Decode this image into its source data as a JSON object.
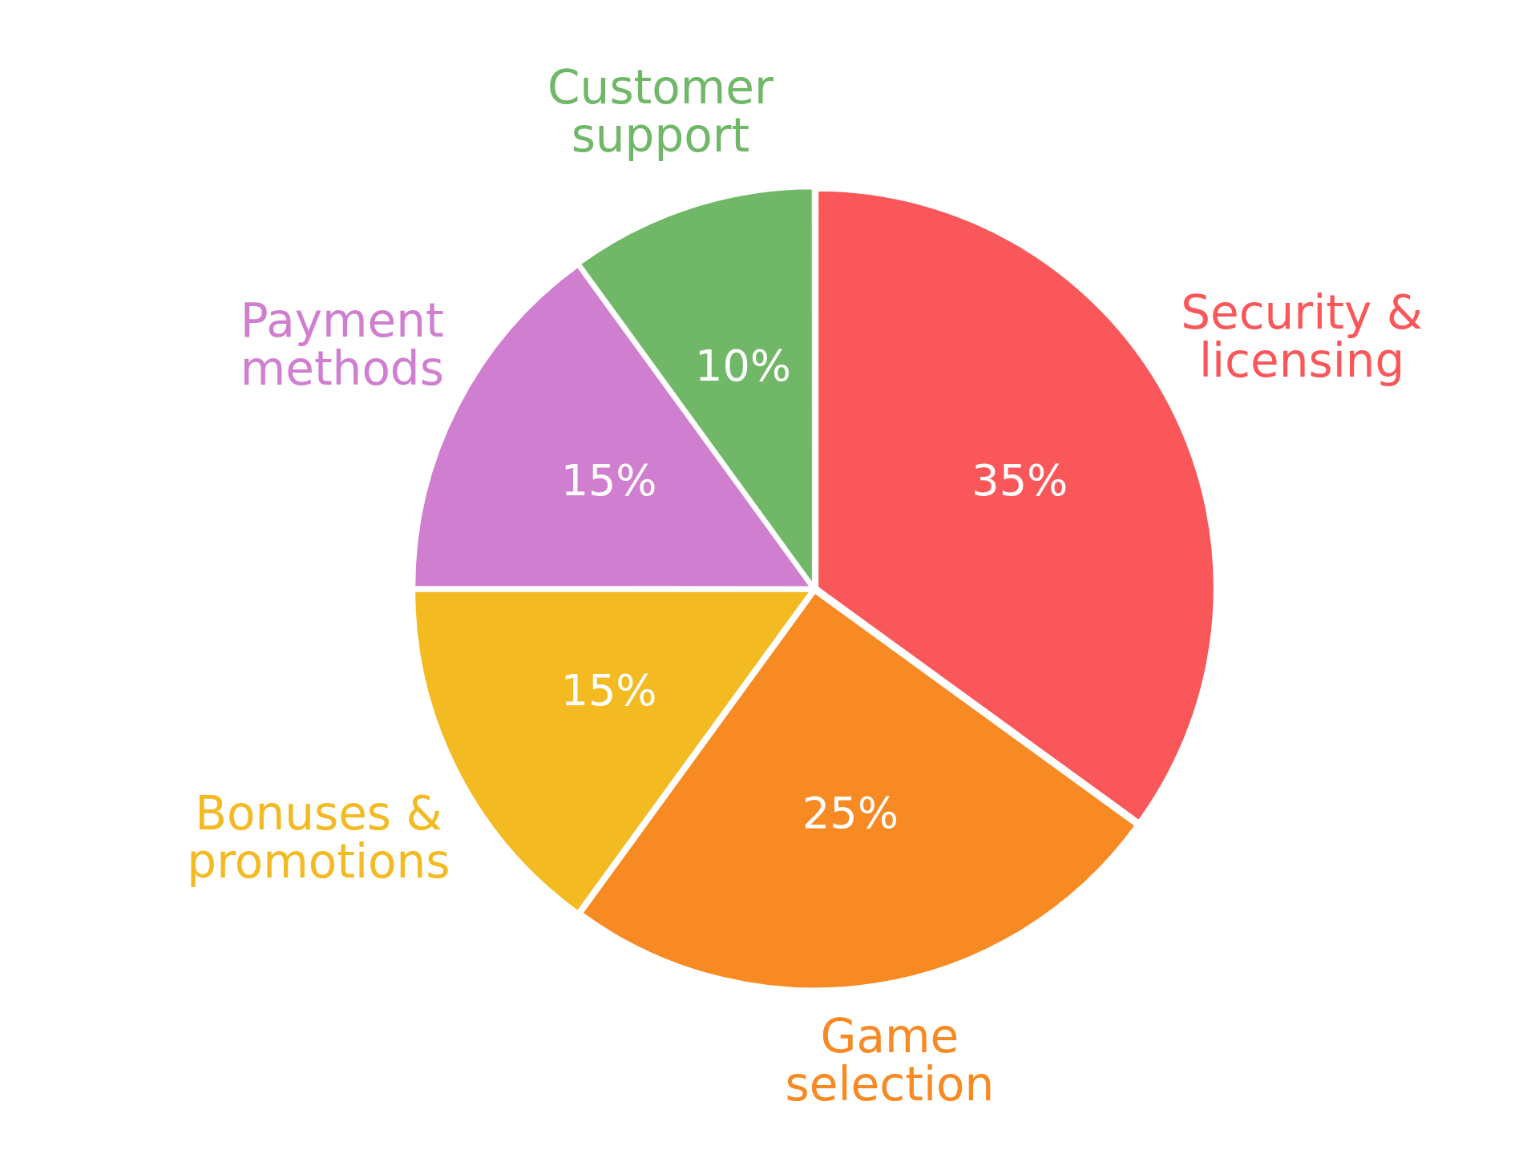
{
  "chart_data": {
    "type": "pie",
    "categories": [
      "Security & licensing",
      "Game selection",
      "Bonuses & promotions",
      "Payment methods",
      "Customer support"
    ],
    "values": [
      35,
      25,
      15,
      15,
      10
    ],
    "value_labels": [
      "35%",
      "25%",
      "15%",
      "15%",
      "10%"
    ],
    "colors": [
      "#f9575a",
      "#f88a24",
      "#f3ba22",
      "#d07fd0",
      "#70b768"
    ],
    "legend": false
  }
}
